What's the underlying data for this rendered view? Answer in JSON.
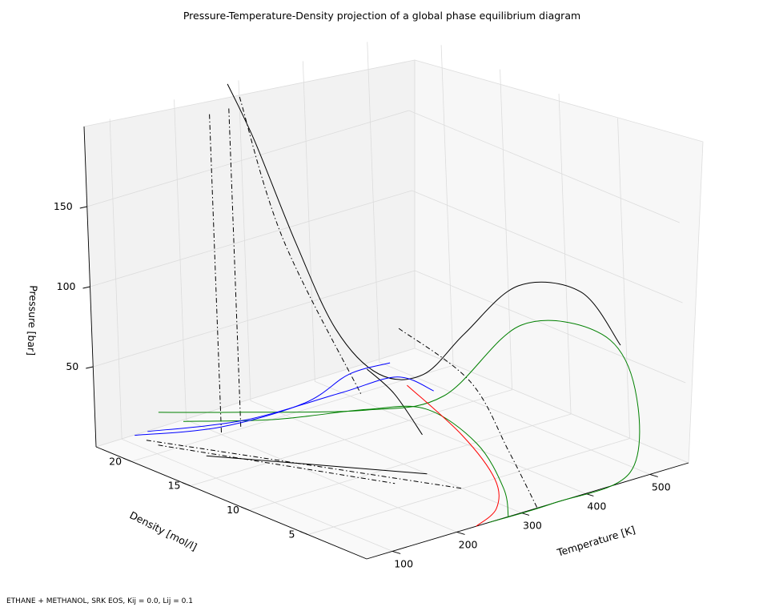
{
  "chart_data": {
    "type": "line3d",
    "title": "Pressure-Temperature-Density projection of a global phase equilibrium diagram",
    "footnote": "ETHANE + METHANOL, SRK EOS, Kij = 0.0, Lij = 0.1",
    "axes": {
      "x": {
        "label": "Temperature [K]",
        "ticks": [
          100,
          200,
          300,
          400,
          500
        ],
        "range": [
          60,
          560
        ]
      },
      "y": {
        "label": "Density [mol/l]",
        "ticks": [
          5,
          10,
          15,
          20
        ],
        "range": [
          0,
          23
        ]
      },
      "z": {
        "label": "Pressure [bar]",
        "ticks": [
          50,
          100,
          150
        ],
        "range": [
          0,
          200
        ]
      }
    },
    "grid": true,
    "colors": {
      "critical": "#000000",
      "methanol": "#008000",
      "ethane": "#0000ff",
      "llv": "#ff0000",
      "dashed": "#000000"
    },
    "series": [
      {
        "style": "solid",
        "color": "#000000",
        "points": [
          [
            265,
            22,
            205
          ],
          [
            268,
            20,
            175
          ],
          [
            272,
            17,
            120
          ],
          [
            275,
            14,
            75
          ],
          [
            285,
            11,
            55
          ],
          [
            300,
            8,
            62
          ],
          [
            330,
            6,
            90
          ],
          [
            380,
            4,
            120
          ],
          [
            440,
            2,
            115
          ],
          [
            480,
            1,
            80
          ]
        ]
      },
      {
        "style": "solid",
        "color": "#000000",
        "points": [
          [
            285,
            12,
            55
          ],
          [
            290,
            10,
            45
          ],
          [
            295,
            8,
            25
          ]
        ]
      },
      {
        "style": "solid",
        "color": "#000000",
        "points": [
          [
            140,
            18,
            0
          ],
          [
            300,
            8,
            0
          ]
        ]
      },
      {
        "style": "dashdot",
        "color": "#000000",
        "points": [
          [
            200,
            20,
            200
          ],
          [
            200,
            20,
            0
          ]
        ]
      },
      {
        "style": "dashdot",
        "color": "#000000",
        "points": [
          [
            230,
            20,
            200
          ],
          [
            230,
            20,
            0
          ]
        ]
      },
      {
        "style": "dashdot",
        "color": "#000000",
        "points": [
          [
            265,
            21,
            200
          ],
          [
            270,
            18,
            120
          ],
          [
            275,
            12,
            40
          ]
        ]
      },
      {
        "style": "dashdot",
        "color": "#000000",
        "points": [
          [
            265,
            8,
            95
          ],
          [
            300,
            4,
            70
          ],
          [
            320,
            2,
            30
          ],
          [
            325,
            0,
            0
          ]
        ]
      },
      {
        "style": "dashdot",
        "color": "#000000",
        "points": [
          [
            120,
            21,
            0
          ],
          [
            250,
            8,
            0
          ]
        ]
      },
      {
        "style": "dashdot",
        "color": "#000000",
        "points": [
          [
            120,
            22,
            0
          ],
          [
            300,
            5,
            0
          ]
        ]
      },
      {
        "style": "solid",
        "color": "#008000",
        "points": [
          [
            140,
            22,
            15
          ],
          [
            200,
            18,
            20
          ],
          [
            280,
            12,
            30
          ],
          [
            330,
            8,
            45
          ],
          [
            400,
            5,
            90
          ],
          [
            470,
            2,
            85
          ],
          [
            500,
            1,
            50
          ],
          [
            470,
            0,
            5
          ],
          [
            350,
            0,
            0
          ],
          [
            250,
            0,
            0
          ]
        ]
      },
      {
        "style": "solid",
        "color": "#008000",
        "points": [
          [
            160,
            21,
            10
          ],
          [
            230,
            17,
            15
          ],
          [
            300,
            13,
            25
          ],
          [
            320,
            9,
            35
          ],
          [
            325,
            5,
            25
          ],
          [
            310,
            2,
            8
          ],
          [
            280,
            0,
            0
          ]
        ]
      },
      {
        "style": "solid",
        "color": "#0000ff",
        "points": [
          [
            120,
            23,
            0
          ],
          [
            180,
            19,
            10
          ],
          [
            240,
            15,
            30
          ],
          [
            275,
            13,
            50
          ],
          [
            285,
            10,
            65
          ]
        ]
      },
      {
        "style": "solid",
        "color": "#0000ff",
        "points": [
          [
            140,
            23,
            0
          ],
          [
            200,
            18,
            15
          ],
          [
            260,
            13,
            40
          ],
          [
            295,
            10,
            55
          ],
          [
            315,
            8,
            50
          ]
        ]
      },
      {
        "style": "solid",
        "color": "#ff0000",
        "points": [
          [
            310,
            10,
            48
          ],
          [
            320,
            6,
            28
          ],
          [
            315,
            3,
            10
          ],
          [
            280,
            1,
            2
          ],
          [
            230,
            0,
            0
          ]
        ]
      }
    ]
  }
}
